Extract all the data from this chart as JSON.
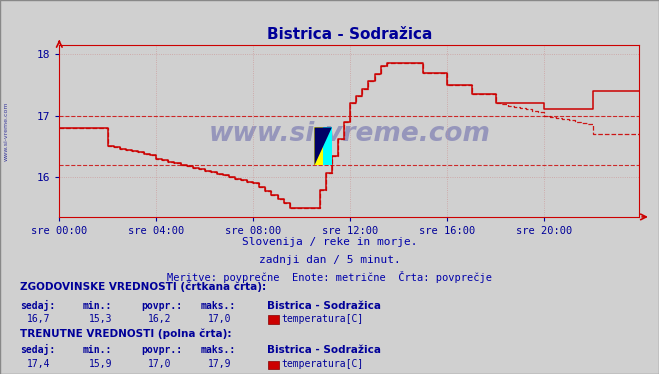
{
  "title": "Bistrica - Sodražica",
  "title_color": "#000099",
  "bg_color": "#d0d0d0",
  "plot_bg_color": "#d0d0d0",
  "line_color_solid": "#cc0000",
  "line_color_dashed": "#cc0000",
  "hline1": 17.0,
  "hline2": 16.2,
  "xlim": [
    0,
    287
  ],
  "ylim": [
    15.35,
    18.15
  ],
  "yticks": [
    16.0,
    17.0,
    18.0
  ],
  "xtick_labels": [
    "sre 00:00",
    "sre 04:00",
    "sre 08:00",
    "sre 12:00",
    "sre 16:00",
    "sre 20:00"
  ],
  "xtick_positions": [
    0,
    48,
    96,
    144,
    192,
    240
  ],
  "subtitle1": "Slovenija / reke in morje.",
  "subtitle2": "zadnji dan / 5 minut.",
  "subtitle3": "Meritve: povprečne  Enote: metrične  Črta: povprečje",
  "subtitle_color": "#0000aa",
  "label1_title": "ZGODOVINSKE VREDNOSTI (črtkana črta):",
  "label1_cols": [
    "sedaj:",
    "min.:",
    "povpr.:",
    "maks.:"
  ],
  "label1_vals": [
    "16,7",
    "15,3",
    "16,2",
    "17,0"
  ],
  "label1_name": "Bistrica - Sodražica",
  "label1_param": "temperatura[C]",
  "label2_title": "TRENUTNE VREDNOSTI (polna črta):",
  "label2_cols": [
    "sedaj:",
    "min.:",
    "povpr.:",
    "maks.:"
  ],
  "label2_vals": [
    "17,4",
    "15,9",
    "17,0",
    "17,9"
  ],
  "label2_name": "Bistrica - Sodražica",
  "label2_param": "temperatura[C]",
  "label_color": "#000099",
  "grid_color": "#cc9999",
  "axis_color": "#cc0000",
  "watermark": "www.si-vreme.com",
  "watermark_color": "#000088"
}
